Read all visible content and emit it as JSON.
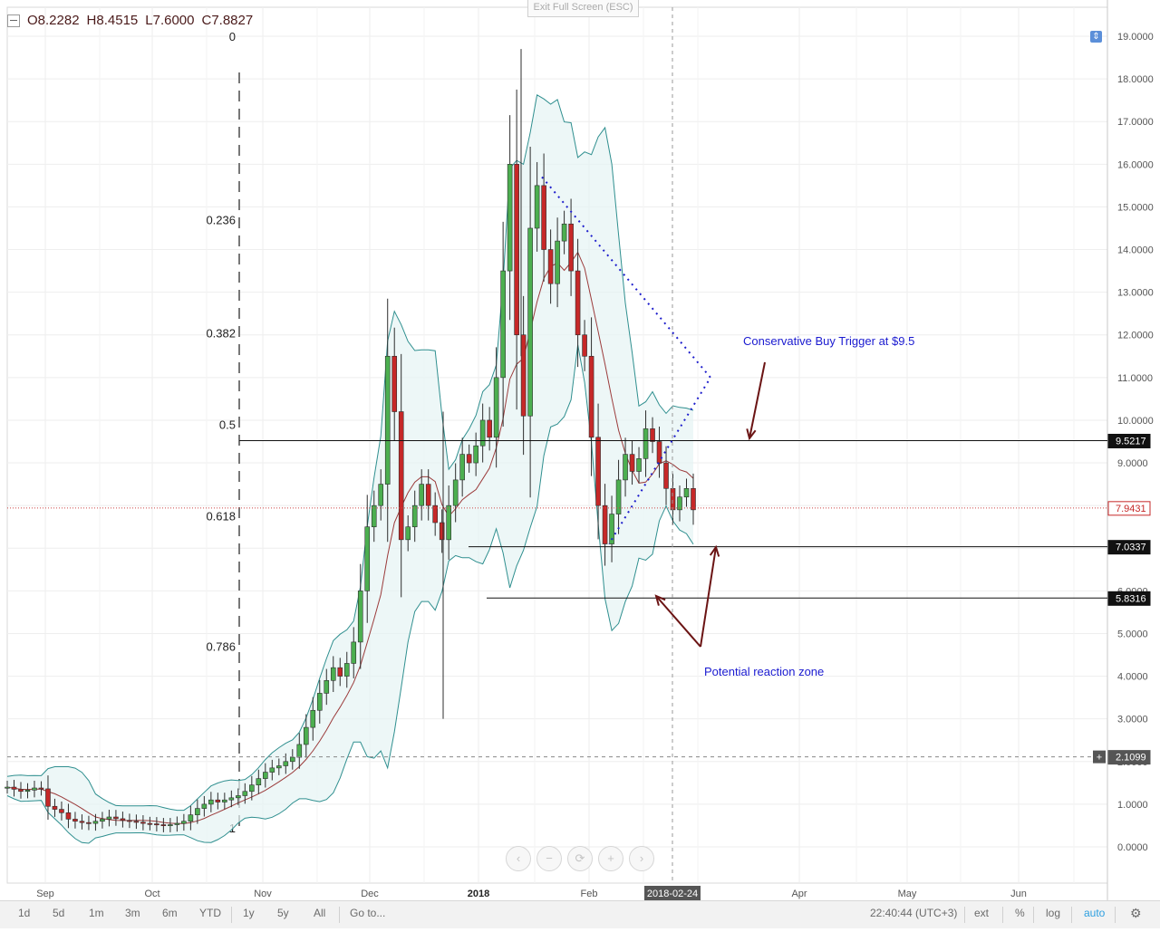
{
  "ohlc": {
    "open": "O8.2282",
    "high": "H8.4515",
    "low": "L7.6000",
    "close": "C7.8827"
  },
  "exit_fullscreen_label": "Exit Full Screen (ESC)",
  "chart_data": {
    "type": "candlestick",
    "title": "",
    "y_ticks": [
      "0.0000",
      "1.0000",
      "2.0000",
      "3.0000",
      "4.0000",
      "5.0000",
      "6.0000",
      "7.0000",
      "8.0000",
      "9.0000",
      "10.0000",
      "11.0000",
      "12.0000",
      "13.0000",
      "14.0000",
      "15.0000",
      "16.0000",
      "17.0000",
      "18.0000",
      "19.0000"
    ],
    "ylim": [
      -0.8,
      20.1
    ],
    "x_tick_labels": [
      "Sep",
      "Oct",
      "Nov",
      "Dec",
      "2018",
      "Feb",
      "Apr",
      "May",
      "Jun"
    ],
    "crosshair_date": "2018-02-24",
    "price_tags": [
      {
        "value": 9.5217,
        "label": "9.5217",
        "style": "dark"
      },
      {
        "value": 7.9431,
        "label": "7.9431",
        "style": "red"
      },
      {
        "value": 7.0337,
        "label": "7.0337",
        "style": "dark"
      },
      {
        "value": 5.8316,
        "label": "5.8316",
        "style": "dark"
      },
      {
        "value": 2.1099,
        "label": "2.1099",
        "style": "gray"
      }
    ],
    "fib_levels": [
      {
        "label": "0",
        "value": 19.0
      },
      {
        "label": "0.236",
        "value": 14.7
      },
      {
        "label": "0.382",
        "value": 12.05
      },
      {
        "label": "0.5",
        "value": 9.9
      },
      {
        "label": "0.618",
        "value": 7.76
      },
      {
        "label": "0.786",
        "value": 4.7
      },
      {
        "label": "1",
        "value": 0.45
      }
    ],
    "horizontal_lines": [
      9.5217,
      7.0337,
      5.8316
    ],
    "annotations": {
      "buy_trigger": "Conservative Buy Trigger at $9.5",
      "reaction_zone": "Potential reaction zone"
    },
    "candles": {
      "sep_oct": [
        1.4,
        1.42,
        1.38,
        1.35,
        1.3,
        1.32,
        1.35,
        1.38,
        1.4,
        1.36,
        1.0,
        0.95,
        0.9,
        0.85,
        0.8,
        0.7,
        0.65,
        0.6,
        0.62,
        0.58,
        0.55,
        0.56,
        0.6,
        0.62,
        0.65,
        0.7,
        0.68,
        0.65,
        0.62,
        0.6,
        0.6,
        0.58,
        0.56,
        0.55,
        0.55,
        0.53,
        0.5,
        0.5,
        0.52,
        0.55
      ]
    },
    "close_series": [
      1.4,
      1.35,
      1.3,
      1.33,
      1.38,
      1.36,
      0.95,
      0.88,
      0.8,
      0.65,
      0.6,
      0.57,
      0.55,
      0.6,
      0.65,
      0.7,
      0.66,
      0.62,
      0.6,
      0.58,
      0.55,
      0.54,
      0.52,
      0.5,
      0.52,
      0.55,
      0.6,
      0.75,
      0.9,
      1.0,
      1.1,
      1.05,
      1.1,
      1.15,
      1.2,
      1.3,
      1.45,
      1.6,
      1.75,
      1.85,
      1.9,
      2.0,
      2.1,
      2.4,
      2.8,
      3.2,
      3.6,
      3.9,
      4.2,
      4.0,
      4.3,
      4.8,
      6.0,
      7.5,
      8.0,
      8.5,
      11.5,
      10.2,
      7.2,
      7.5,
      8.0,
      8.5,
      8.0,
      7.6,
      7.2,
      8.0,
      8.6,
      9.2,
      9.0,
      9.4,
      10.0,
      9.6,
      11.0,
      13.5,
      16.0,
      12.0,
      10.1,
      14.5,
      15.5,
      14.0,
      13.2,
      14.2,
      14.6,
      13.5,
      12.0,
      11.5,
      9.6,
      8.0,
      7.1,
      7.8,
      8.6,
      9.2,
      8.8,
      9.1,
      9.8,
      9.5,
      9.0,
      8.4,
      7.9,
      8.2,
      8.4,
      7.9
    ],
    "series": [
      {
        "name": "",
        "kind": "sma"
      },
      {
        "name": "",
        "kind": "bollinger"
      }
    ]
  },
  "nav": {
    "prev": "‹",
    "minus": "−",
    "reset": "⟳",
    "plus": "+",
    "next": "›"
  },
  "bottom_bar": {
    "ranges": [
      "1d",
      "5d",
      "1m",
      "3m",
      "6m",
      "YTD",
      "1y",
      "5y",
      "All"
    ],
    "goto": "Go to...",
    "time": "22:40:44 (UTC+3)",
    "ext": "ext",
    "percent": "%",
    "log": "log",
    "auto": "auto"
  }
}
